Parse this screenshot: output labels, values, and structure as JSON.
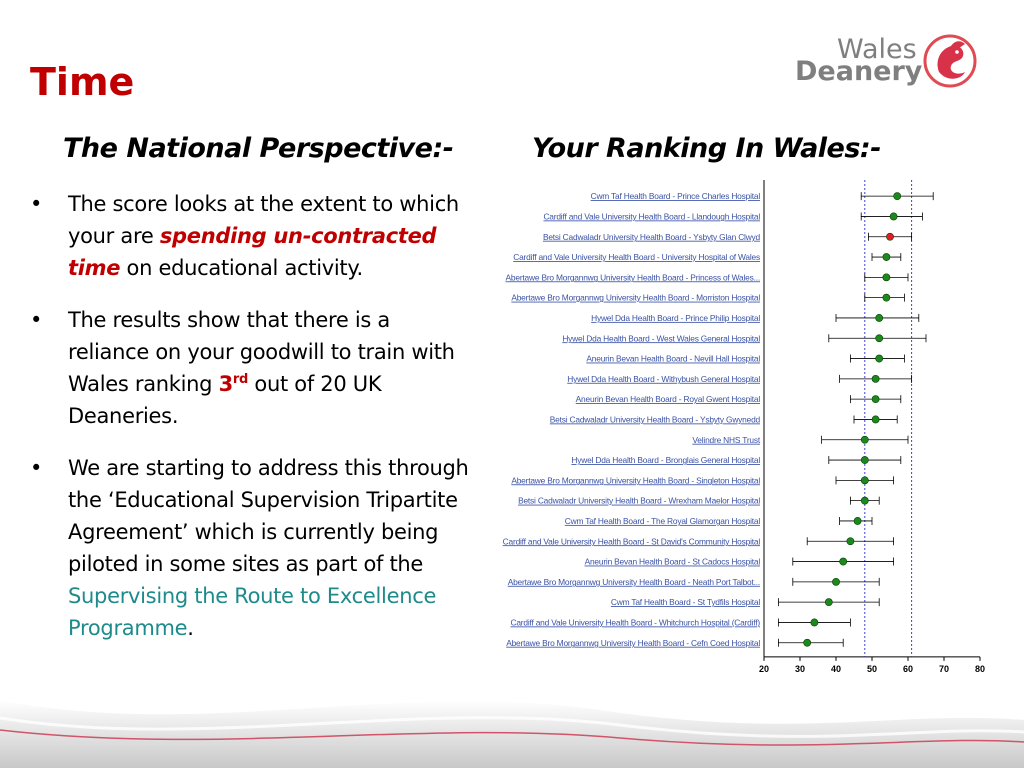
{
  "slide": {
    "title": "Time",
    "logo": {
      "line1": "Wales",
      "line2": "Deanery"
    },
    "left_heading": "The National Perspective:-",
    "right_heading": "Your Ranking In Wales:-",
    "bullets": [
      {
        "p1": "The score looks at the extent to which your are ",
        "em": "spending un-contracted time",
        "p2": " on educational activity."
      },
      {
        "p1": "The results show that there is a reliance on your goodwill to train with Wales ranking ",
        "rank": "3",
        "sup": "rd",
        "p2": " out of 20 UK Deaneries."
      },
      {
        "p1": "We are starting to address this through the ‘Educational Supervision Tripartite Agreement’ which is currently being piloted in some sites as part of the ",
        "link": "Supervising the Route to Excellence Programme",
        "p2": "."
      }
    ],
    "bullet_symbol": "•"
  },
  "colors": {
    "title_red": "#c00000",
    "teal": "#1e8a8a",
    "point_green": "#1a8a1a",
    "point_red": "#e02020",
    "ref_line": "#4040d0",
    "link_blue": "#3a52a6"
  },
  "chart_data": {
    "type": "scatter",
    "title": "",
    "xlabel": "",
    "ylabel": "",
    "xlim": [
      20,
      80
    ],
    "xticks": [
      "20",
      "30",
      "40",
      "50",
      "60",
      "70",
      "80"
    ],
    "reference_lines": [
      48,
      61
    ],
    "grid": false,
    "rows": [
      {
        "label": "Cwm Taf Health Board - Prince Charles Hospital",
        "value": 57,
        "low": 47,
        "high": 67,
        "highlight": false
      },
      {
        "label": "Cardiff and Vale University Health Board - Llandough Hospital",
        "value": 56,
        "low": 47,
        "high": 64,
        "highlight": false
      },
      {
        "label": "Betsi Cadwaladr University Health Board - Ysbyty Glan Clwyd",
        "value": 55,
        "low": 49,
        "high": 61,
        "highlight": true
      },
      {
        "label": "Cardiff and Vale University Health Board - University Hospital of Wales",
        "value": 54,
        "low": 50,
        "high": 58,
        "highlight": false
      },
      {
        "label": "Abertawe Bro Morgannwg University Health Board - Princess of Wales...",
        "value": 54,
        "low": 48,
        "high": 60,
        "highlight": false
      },
      {
        "label": "Abertawe Bro Morgannwg University Health Board - Morriston Hospital",
        "value": 54,
        "low": 48,
        "high": 59,
        "highlight": false
      },
      {
        "label": "Hywel Dda Health Board - Prince Philip Hospital",
        "value": 52,
        "low": 40,
        "high": 63,
        "highlight": false
      },
      {
        "label": "Hywel Dda Health Board - West Wales General Hospital",
        "value": 52,
        "low": 38,
        "high": 65,
        "highlight": false
      },
      {
        "label": "Aneurin Bevan Health Board - Nevill Hall Hospital",
        "value": 52,
        "low": 44,
        "high": 59,
        "highlight": false
      },
      {
        "label": "Hywel Dda Health Board - Withybush General Hospital",
        "value": 51,
        "low": 41,
        "high": 61,
        "highlight": false
      },
      {
        "label": "Aneurin Bevan Health Board - Royal Gwent Hospital",
        "value": 51,
        "low": 44,
        "high": 58,
        "highlight": false
      },
      {
        "label": "Betsi Cadwaladr University Health Board - Ysbyty Gwynedd",
        "value": 51,
        "low": 45,
        "high": 57,
        "highlight": false
      },
      {
        "label": "Velindre NHS Trust",
        "value": 48,
        "low": 36,
        "high": 60,
        "highlight": false
      },
      {
        "label": "Hywel Dda Health Board - Bronglais General Hospital",
        "value": 48,
        "low": 38,
        "high": 58,
        "highlight": false
      },
      {
        "label": "Abertawe Bro Morgannwg University Health Board - Singleton Hospital",
        "value": 48,
        "low": 40,
        "high": 56,
        "highlight": false
      },
      {
        "label": "Betsi Cadwaladr University Health Board - Wrexham Maelor Hospital",
        "value": 48,
        "low": 44,
        "high": 52,
        "highlight": false
      },
      {
        "label": "Cwm Taf Health Board - The Royal Glamorgan Hospital",
        "value": 46,
        "low": 41,
        "high": 50,
        "highlight": false
      },
      {
        "label": "Cardiff and Vale University Health Board - St David's Community Hospital",
        "value": 44,
        "low": 32,
        "high": 56,
        "highlight": false
      },
      {
        "label": "Aneurin Bevan Health Board - St Cadocs Hospital",
        "value": 42,
        "low": 28,
        "high": 56,
        "highlight": false
      },
      {
        "label": "Abertawe Bro Morgannwg University Health Board - Neath Port Talbot...",
        "value": 40,
        "low": 28,
        "high": 52,
        "highlight": false
      },
      {
        "label": "Cwm Taf Health Board - St Tydfils Hospital",
        "value": 38,
        "low": 24,
        "high": 52,
        "highlight": false
      },
      {
        "label": "Cardiff and Vale University Health Board - Whitchurch Hospital (Cardiff)",
        "value": 34,
        "low": 24,
        "high": 44,
        "highlight": false
      },
      {
        "label": "Abertawe Bro Morgannwg University Health Board - Cefn Coed Hospital",
        "value": 32,
        "low": 24,
        "high": 42,
        "highlight": false
      }
    ]
  }
}
